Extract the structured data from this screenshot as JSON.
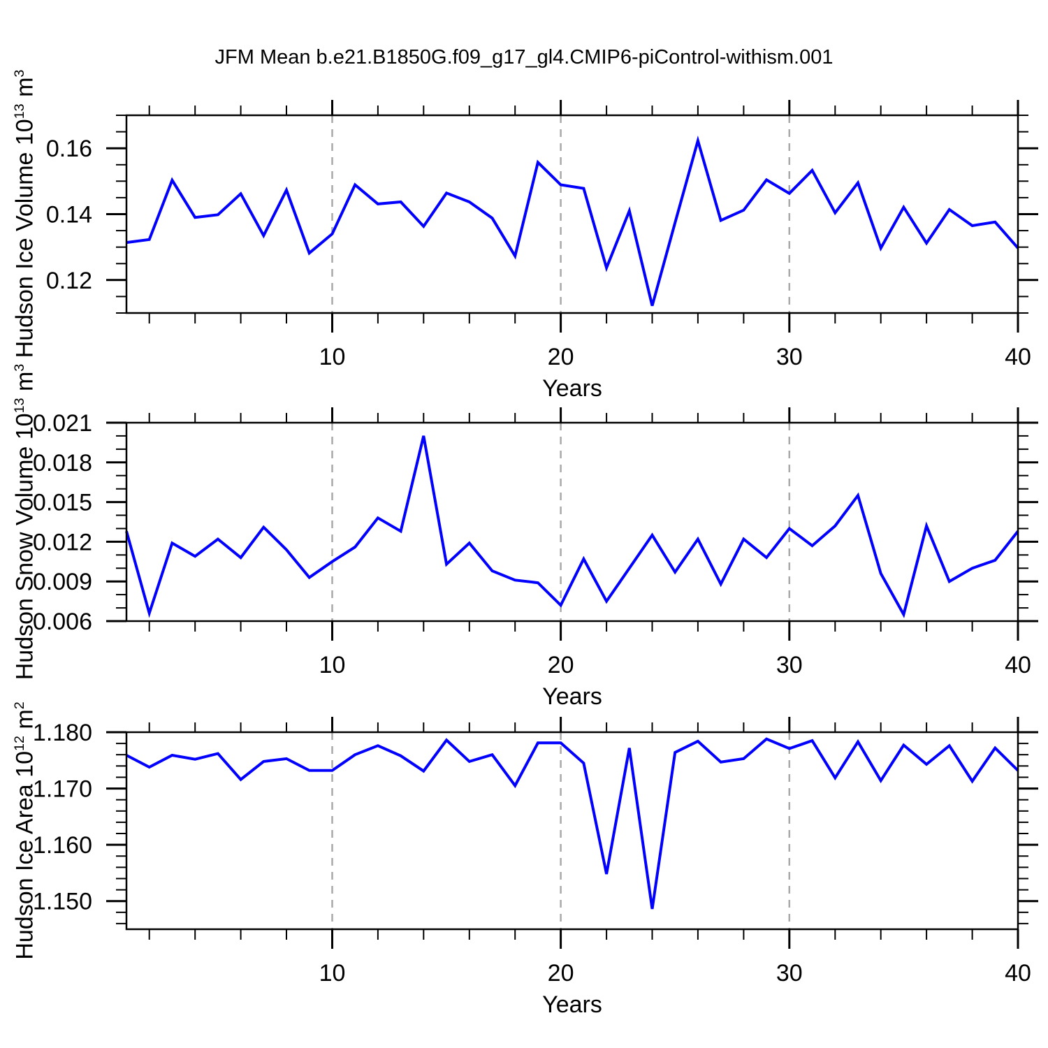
{
  "title": "JFM Mean b.e21.B1850G.f09_g17_gl4.CMIP6-piControl-withism.001",
  "line_color": "#0101fd",
  "grid_color": "#a9a9a9",
  "years": [
    1,
    2,
    3,
    4,
    5,
    6,
    7,
    8,
    9,
    10,
    11,
    12,
    13,
    14,
    15,
    16,
    17,
    18,
    19,
    20,
    21,
    22,
    23,
    24,
    25,
    26,
    27,
    28,
    29,
    30,
    31,
    32,
    33,
    34,
    35,
    36,
    37,
    38,
    39,
    40
  ],
  "chart_data": [
    {
      "type": "line",
      "name": "Hudson Ice Volume",
      "ylabel": "Hudson Ice Volume 10^13^ m^3^",
      "xlabel": "Years",
      "xlim": [
        1,
        40
      ],
      "ylim": [
        0.11,
        0.17
      ],
      "xticks": [
        10,
        20,
        30,
        40
      ],
      "xtick_labels": [
        "10",
        "20",
        "30",
        "40"
      ],
      "xminor_step": 2,
      "x_gridlines": [
        10,
        20,
        30
      ],
      "yticks": [
        0.12,
        0.14,
        0.16
      ],
      "ytick_labels": [
        "0.12",
        "0.14",
        "0.16"
      ],
      "yminor_step": 0.005,
      "values": [
        0.1314,
        0.1323,
        0.1503,
        0.139,
        0.1398,
        0.1462,
        0.1335,
        0.1473,
        0.1282,
        0.134,
        0.1489,
        0.1431,
        0.1437,
        0.1363,
        0.1464,
        0.1437,
        0.1388,
        0.1273,
        0.1557,
        0.1489,
        0.1478,
        0.1237,
        0.141,
        0.1122,
        0.1374,
        0.1623,
        0.1381,
        0.1412,
        0.1504,
        0.1463,
        0.1533,
        0.1404,
        0.1495,
        0.1297,
        0.1421,
        0.1312,
        0.1414,
        0.1365,
        0.1376,
        0.1297
      ]
    },
    {
      "type": "line",
      "name": "Hudson Snow Volume",
      "ylabel": "Hudson Snow Volume 10^13^ m^3^",
      "xlabel": "Years",
      "xlim": [
        1,
        40
      ],
      "ylim": [
        0.006,
        0.021
      ],
      "xticks": [
        10,
        20,
        30,
        40
      ],
      "xtick_labels": [
        "10",
        "20",
        "30",
        "40"
      ],
      "xminor_step": 2,
      "x_gridlines": [
        10,
        20,
        30
      ],
      "yticks": [
        0.006,
        0.009,
        0.012,
        0.015,
        0.018,
        0.021
      ],
      "ytick_labels": [
        "0.006",
        "0.009",
        "0.012",
        "0.015",
        "0.018",
        "0.021"
      ],
      "yminor_step": 0.001,
      "values": [
        0.0128,
        0.0066,
        0.0119,
        0.0109,
        0.0122,
        0.0108,
        0.0131,
        0.0114,
        0.0093,
        0.0105,
        0.0116,
        0.0138,
        0.0128,
        0.02,
        0.0103,
        0.0119,
        0.0098,
        0.0091,
        0.0089,
        0.0072,
        0.0107,
        0.0075,
        0.01,
        0.0125,
        0.0097,
        0.0122,
        0.0088,
        0.0122,
        0.0108,
        0.013,
        0.0117,
        0.0132,
        0.0155,
        0.0096,
        0.0065,
        0.0132,
        0.009,
        0.01,
        0.0106,
        0.0128
      ]
    },
    {
      "type": "line",
      "name": "Hudson Ice Area",
      "ylabel": "Hudson Ice Area 10^12^ m^2^",
      "xlabel": "Years",
      "xlim": [
        1,
        40
      ],
      "ylim": [
        1.145,
        1.18
      ],
      "xticks": [
        10,
        20,
        30,
        40
      ],
      "xtick_labels": [
        "10",
        "20",
        "30",
        "40"
      ],
      "xminor_step": 2,
      "x_gridlines": [
        10,
        20,
        30
      ],
      "yticks": [
        1.15,
        1.16,
        1.17,
        1.18
      ],
      "ytick_labels": [
        "1.150",
        "1.160",
        "1.170",
        "1.180"
      ],
      "yminor_step": 0.002,
      "values": [
        1.1759,
        1.1738,
        1.1759,
        1.1752,
        1.1762,
        1.1716,
        1.1748,
        1.1753,
        1.1732,
        1.1732,
        1.176,
        1.1776,
        1.1758,
        1.1731,
        1.1786,
        1.1748,
        1.176,
        1.1705,
        1.1781,
        1.1781,
        1.1745,
        1.1548,
        1.1772,
        1.1486,
        1.1764,
        1.1784,
        1.1747,
        1.1753,
        1.1788,
        1.1771,
        1.1785,
        1.1719,
        1.1783,
        1.1714,
        1.1777,
        1.1743,
        1.1776,
        1.1713,
        1.1772,
        1.1732
      ]
    }
  ]
}
